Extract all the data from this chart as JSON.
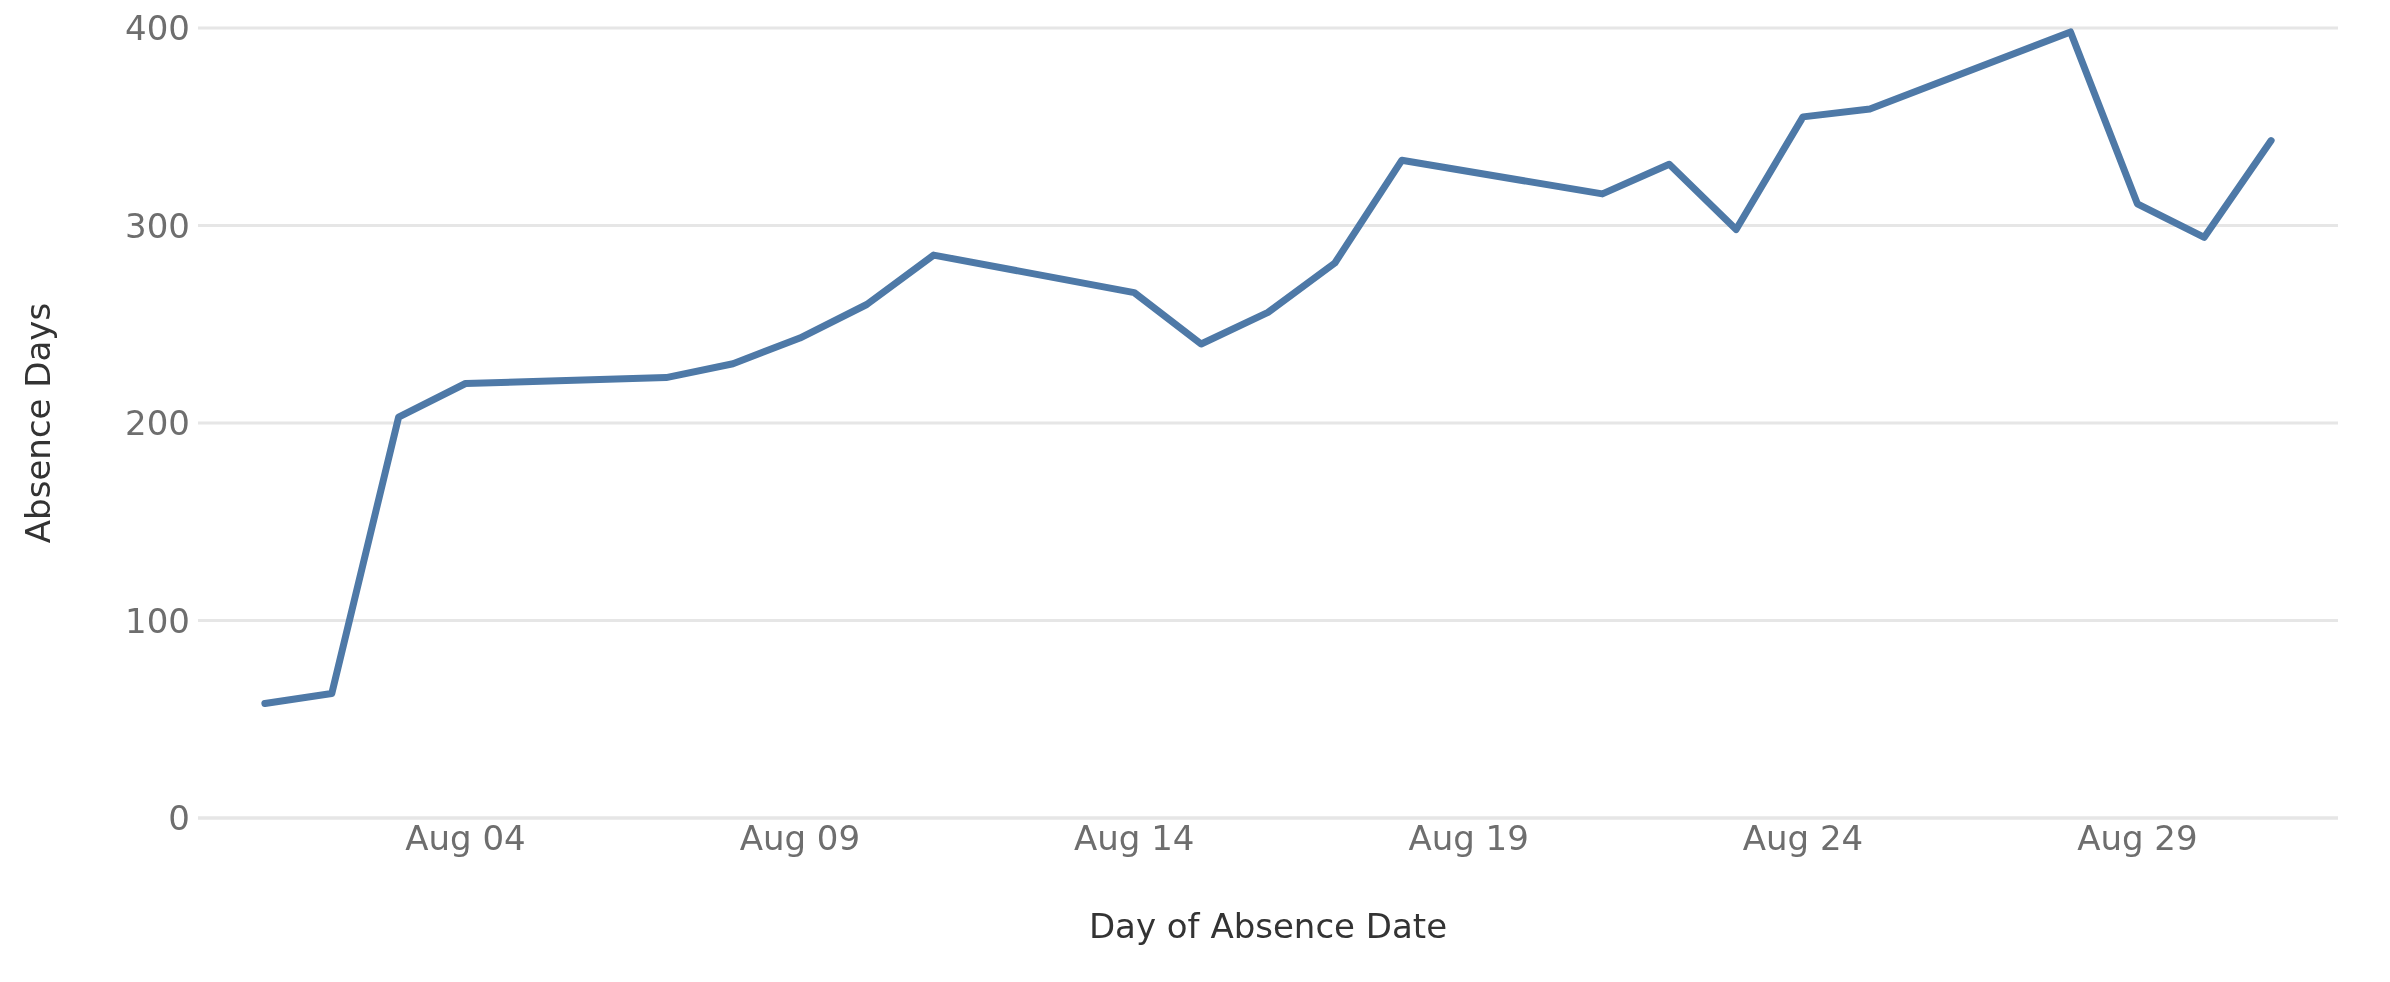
{
  "chart_data": {
    "type": "line",
    "xlabel": "Day of Absence Date",
    "ylabel": "Absence Days",
    "x": [
      "--08-01",
      "--08-02",
      "--08-03",
      "--08-04",
      "--08-07",
      "--08-08",
      "--08-09",
      "--08-10",
      "--08-11",
      "--08-14",
      "--08-15",
      "--08-16",
      "--08-17",
      "--08-18",
      "--08-21",
      "--08-22",
      "--08-23",
      "--08-24",
      "--08-25",
      "--08-28",
      "--08-29",
      "--08-30",
      "--08-31"
    ],
    "series": [
      {
        "color": "#4e79a7",
        "values": [
          58,
          63,
          203,
          220,
          223,
          230,
          243,
          260,
          285,
          266,
          240,
          256,
          281,
          333,
          316,
          331,
          298,
          355,
          359,
          398,
          311,
          294,
          343
        ]
      }
    ],
    "xlim": [
      "--07-31",
      "--09-01"
    ],
    "xticks": [
      {
        "value": "--08-04",
        "label": "Aug 04"
      },
      {
        "value": "--08-09",
        "label": "Aug 09"
      },
      {
        "value": "--08-14",
        "label": "Aug 14"
      },
      {
        "value": "--08-19",
        "label": "Aug 19"
      },
      {
        "value": "--08-24",
        "label": "Aug 24"
      },
      {
        "value": "--08-29",
        "label": "Aug 29"
      }
    ],
    "ylim": [
      0,
      400
    ],
    "yticks": [
      0,
      100,
      200,
      300,
      400
    ],
    "grid": "y",
    "marker": "none",
    "line_style": "solid",
    "legend": false
  }
}
